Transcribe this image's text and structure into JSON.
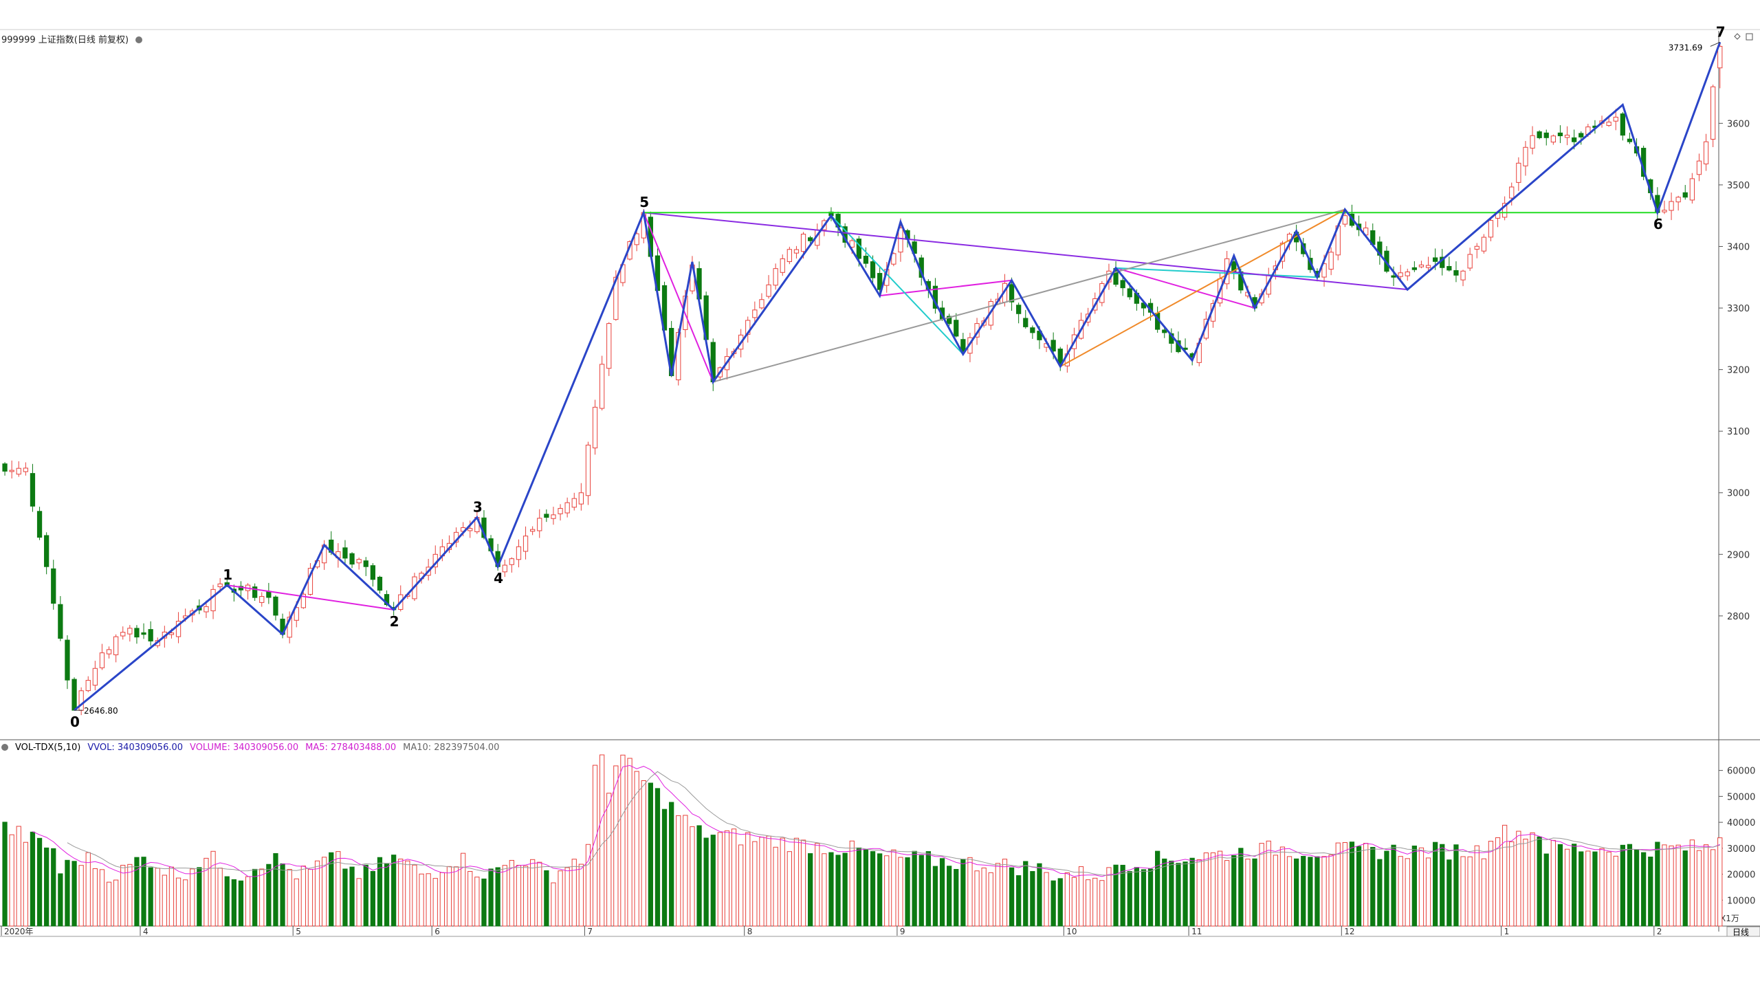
{
  "header": {
    "title": "999999 上证指数(日线 前复权)"
  },
  "vol_header": {
    "name": "VOL-TDX(5,10)",
    "vvol": "VVOL: 340309056.00",
    "volume": "VOLUME: 340309056.00",
    "ma5": "MA5: 278403488.00",
    "ma10": "MA10: 282397504.00"
  },
  "labels": {
    "low_value": "2646.80",
    "high_value": "3731.69",
    "period_button": "日线",
    "vol_unit": "X1万"
  },
  "colors": {
    "up": "#e8403a",
    "down": "#0c7a12",
    "zigzag": "#2a45c8",
    "magenta": "#e020e0",
    "purple": "#8a2be2",
    "green_line": "#22dd22",
    "gray_line": "#999999",
    "cyan_line": "#22cccc",
    "orange_line": "#f08a2a",
    "grid": "#dddddd"
  },
  "chart_data": {
    "type": "candlestick",
    "price_axis": {
      "min": 2600,
      "max": 3750,
      "ticks": [
        2800,
        2900,
        3000,
        3100,
        3200,
        3300,
        3400,
        3500,
        3600
      ]
    },
    "volume_axis": {
      "min": 0,
      "max": 66000,
      "ticks": [
        10000,
        20000,
        30000,
        40000,
        50000,
        60000
      ]
    },
    "x_ticks": [
      {
        "i": 0,
        "label": "2020年"
      },
      {
        "i": 20,
        "label": "4"
      },
      {
        "i": 42,
        "label": "5"
      },
      {
        "i": 62,
        "label": "6"
      },
      {
        "i": 84,
        "label": "7"
      },
      {
        "i": 107,
        "label": "8"
      },
      {
        "i": 129,
        "label": "9"
      },
      {
        "i": 153,
        "label": "10"
      },
      {
        "i": 171,
        "label": "11"
      },
      {
        "i": 193,
        "label": "12"
      },
      {
        "i": 216,
        "label": "1"
      },
      {
        "i": 238,
        "label": "2"
      }
    ],
    "total_bars": 248,
    "anchors": [
      [
        0,
        3035
      ],
      [
        3,
        3040
      ],
      [
        6,
        2880
      ],
      [
        10,
        2646.8
      ],
      [
        14,
        2740
      ],
      [
        18,
        2780
      ],
      [
        22,
        2760
      ],
      [
        26,
        2800
      ],
      [
        32,
        2850
      ],
      [
        38,
        2830
      ],
      [
        40,
        2770
      ],
      [
        46,
        2915
      ],
      [
        52,
        2880
      ],
      [
        56,
        2810
      ],
      [
        62,
        2900
      ],
      [
        68,
        2960
      ],
      [
        71,
        2880
      ],
      [
        78,
        2960
      ],
      [
        83,
        3000
      ],
      [
        88,
        3350
      ],
      [
        92,
        3455
      ],
      [
        96,
        3190
      ],
      [
        99,
        3370
      ],
      [
        102,
        3180
      ],
      [
        107,
        3280
      ],
      [
        112,
        3380
      ],
      [
        119,
        3450
      ],
      [
        126,
        3330
      ],
      [
        129,
        3430
      ],
      [
        133,
        3330
      ],
      [
        138,
        3230
      ],
      [
        144,
        3340
      ],
      [
        148,
        3260
      ],
      [
        152,
        3210
      ],
      [
        155,
        3280
      ],
      [
        159,
        3360
      ],
      [
        164,
        3300
      ],
      [
        167,
        3260
      ],
      [
        171,
        3220
      ],
      [
        176,
        3380
      ],
      [
        180,
        3300
      ],
      [
        185,
        3420
      ],
      [
        189,
        3350
      ],
      [
        193,
        3450
      ],
      [
        196,
        3430
      ],
      [
        200,
        3350
      ],
      [
        204,
        3370
      ],
      [
        210,
        3360
      ],
      [
        216,
        3470
      ],
      [
        220,
        3580
      ],
      [
        226,
        3570
      ],
      [
        232,
        3610
      ],
      [
        234,
        3570
      ],
      [
        238,
        3455
      ],
      [
        242,
        3480
      ],
      [
        245,
        3570
      ],
      [
        247,
        3731.69
      ]
    ],
    "wave_labels": [
      {
        "label": "0",
        "i": 10,
        "price": 2646.8,
        "pos": "below"
      },
      {
        "label": "1",
        "i": 32,
        "price": 2850,
        "pos": "above"
      },
      {
        "label": "2",
        "i": 56,
        "price": 2810,
        "pos": "below"
      },
      {
        "label": "3",
        "i": 68,
        "price": 2960,
        "pos": "above"
      },
      {
        "label": "4",
        "i": 71,
        "price": 2880,
        "pos": "below"
      },
      {
        "label": "5",
        "i": 92,
        "price": 3455,
        "pos": "above"
      },
      {
        "label": "6",
        "i": 238,
        "price": 3455,
        "pos": "below"
      },
      {
        "label": "7",
        "i": 247,
        "price": 3731.69,
        "pos": "above"
      }
    ],
    "zigzag": [
      [
        10,
        2646.8
      ],
      [
        32,
        2850
      ],
      [
        40,
        2770
      ],
      [
        46,
        2915
      ],
      [
        56,
        2810
      ],
      [
        68,
        2960
      ],
      [
        71,
        2880
      ],
      [
        92,
        3455
      ],
      [
        96,
        3190
      ],
      [
        99,
        3375
      ],
      [
        102,
        3180
      ],
      [
        119,
        3450
      ],
      [
        126,
        3320
      ],
      [
        129,
        3440
      ],
      [
        133,
        3330
      ],
      [
        138,
        3225
      ],
      [
        145,
        3345
      ],
      [
        152,
        3205
      ],
      [
        160,
        3365
      ],
      [
        171,
        3215
      ],
      [
        177,
        3385
      ],
      [
        180,
        3300
      ],
      [
        186,
        3425
      ],
      [
        189,
        3350
      ],
      [
        193,
        3460
      ],
      [
        202,
        3330
      ],
      [
        233,
        3630
      ],
      [
        238,
        3455
      ],
      [
        247,
        3731.69
      ]
    ],
    "trendlines": [
      {
        "color": "magenta",
        "points": [
          [
            32,
            2850
          ],
          [
            56,
            2810
          ]
        ]
      },
      {
        "color": "magenta",
        "points": [
          [
            92,
            3455
          ],
          [
            102,
            3180
          ]
        ]
      },
      {
        "color": "magenta",
        "points": [
          [
            126,
            3320
          ],
          [
            145,
            3345
          ]
        ]
      },
      {
        "color": "magenta",
        "points": [
          [
            160,
            3365
          ],
          [
            180,
            3300
          ]
        ]
      },
      {
        "color": "cyan_line",
        "points": [
          [
            119,
            3450
          ],
          [
            138,
            3225
          ]
        ]
      },
      {
        "color": "cyan_line",
        "points": [
          [
            160,
            3365
          ],
          [
            189,
            3350
          ]
        ]
      },
      {
        "color": "purple",
        "points": [
          [
            92,
            3455
          ],
          [
            202,
            3330
          ]
        ]
      },
      {
        "color": "gray_line",
        "points": [
          [
            102,
            3180
          ],
          [
            193,
            3460
          ]
        ]
      },
      {
        "color": "orange_line",
        "points": [
          [
            152,
            3205
          ],
          [
            193,
            3460
          ]
        ]
      },
      {
        "color": "green_line",
        "points": [
          [
            92,
            3455
          ],
          [
            238,
            3455
          ]
        ]
      }
    ]
  }
}
